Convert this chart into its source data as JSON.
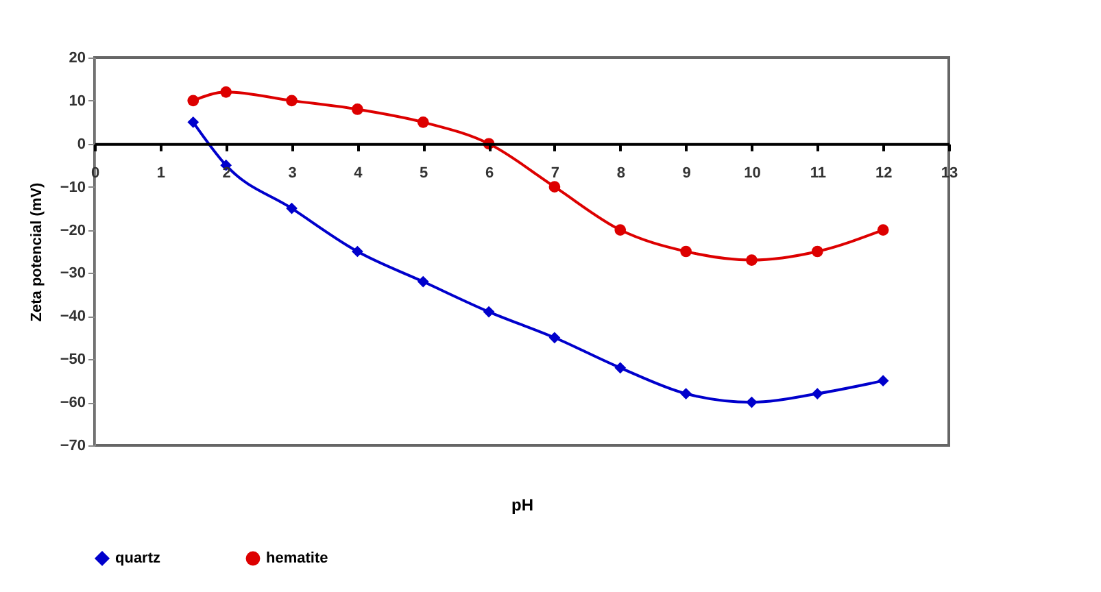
{
  "chart_data": {
    "type": "line",
    "xlabel": "pH",
    "ylabel": "Zeta potencial (mV)",
    "x": [
      1.5,
      2,
      3,
      4,
      5,
      6,
      7,
      8,
      9,
      10,
      11,
      12
    ],
    "series": [
      {
        "name": "quartz",
        "color": "#0000cc",
        "marker": "diamond",
        "values": [
          5,
          -5,
          -15,
          -25,
          -32,
          -39,
          -45,
          -52,
          -58,
          -60,
          -58,
          -55
        ]
      },
      {
        "name": "hematite",
        "color": "#dd0000",
        "marker": "circle",
        "values": [
          10,
          12,
          10,
          8,
          5,
          0,
          -10,
          -20,
          -25,
          -27,
          -25,
          -20
        ]
      }
    ],
    "xlim": [
      0,
      13
    ],
    "xticks": [
      0,
      1,
      2,
      3,
      4,
      5,
      6,
      7,
      8,
      9,
      10,
      11,
      12,
      13
    ],
    "ylim": [
      -70,
      20
    ],
    "yticks": [
      -70,
      -60,
      -50,
      -40,
      -30,
      -20,
      -10,
      0,
      10,
      20
    ],
    "grid": false,
    "legend": "bottom"
  }
}
